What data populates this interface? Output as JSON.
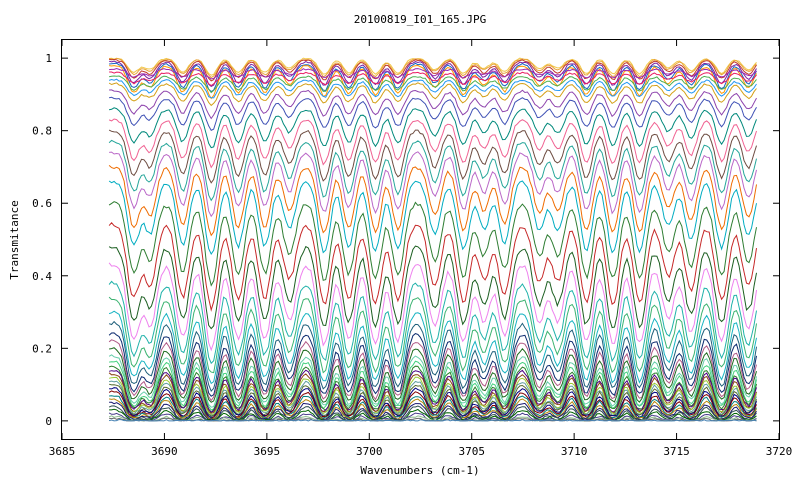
{
  "chart_data": {
    "type": "line",
    "title": "20100819_I01_165.JPG",
    "xlabel": "Wavenumbers (cm-1)",
    "ylabel": "Transmitance",
    "xlim": [
      3685,
      3720
    ],
    "ylim": [
      -0.05,
      1.05
    ],
    "x_ticks": [
      3685,
      3690,
      3695,
      3700,
      3705,
      3710,
      3715,
      3720
    ],
    "y_ticks": [
      0,
      0.2,
      0.4,
      0.6,
      0.8,
      1
    ],
    "x_tick_labels": [
      "3685",
      "3690",
      "3695",
      "3700",
      "3705",
      "3710",
      "3715",
      "3720"
    ],
    "y_tick_labels": [
      "0",
      "0.2",
      "0.4",
      "0.6",
      "0.8",
      "1"
    ],
    "x_range": [
      3687.3,
      3718.9
    ],
    "absorption_line_positions": [
      3688.5,
      3689.3,
      3690.9,
      3692.3,
      3693.6,
      3694.9,
      3696.1,
      3697.8,
      3699.0,
      3700.3,
      3701.4,
      3703.2,
      3704.6,
      3705.6,
      3706.6,
      3708.3,
      3709.2,
      3710.6,
      3711.9,
      3713.2,
      3714.6,
      3715.7,
      3717.2,
      3718.5
    ],
    "grid": false,
    "legend": "none",
    "series_baselines": [
      1.0,
      0.998,
      0.995,
      0.99,
      0.985,
      0.98,
      0.97,
      0.96,
      0.95,
      0.94,
      0.93,
      0.91,
      0.89,
      0.86,
      0.83,
      0.8,
      0.77,
      0.74,
      0.7,
      0.66,
      0.6,
      0.54,
      0.48,
      0.43,
      0.38,
      0.34,
      0.3,
      0.27,
      0.24,
      0.22,
      0.2,
      0.18,
      0.165,
      0.15,
      0.14,
      0.13,
      0.12,
      0.11,
      0.1,
      0.09,
      0.08,
      0.07,
      0.06,
      0.05,
      0.04,
      0.03,
      0.02,
      0.012,
      0.006,
      0.002
    ],
    "series_colors": [
      "#f2c84b",
      "#e8a33a",
      "#c0392b",
      "#7b1fa2",
      "#1565c0",
      "#ff9800",
      "#9c27b0",
      "#e91e63",
      "#4caf50",
      "#2196f3",
      "#d4a017",
      "#8e44ad",
      "#3f51b5",
      "#00897b",
      "#f06292",
      "#6d4c41",
      "#26a69a",
      "#ba68c8",
      "#ef6c00",
      "#00acc1",
      "#2e7d32",
      "#c62828",
      "#1b5e20",
      "#ee82ee",
      "#20b2aa",
      "#3cb371",
      "#17b3c2",
      "#1f5f7a",
      "#0b2a6e",
      "#b05a86",
      "#1e6b1e",
      "#66cdaa",
      "#44d17e",
      "#2a7f2a",
      "#4b0082",
      "#8b4513",
      "#9acd32",
      "#5f9ea0",
      "#556b2f",
      "#000080",
      "#800000",
      "#008080",
      "#b8860b",
      "#191970",
      "#2f4f4f",
      "#006400",
      "#483d8b",
      "#8fbc8f",
      "#696969",
      "#4682b4"
    ]
  }
}
